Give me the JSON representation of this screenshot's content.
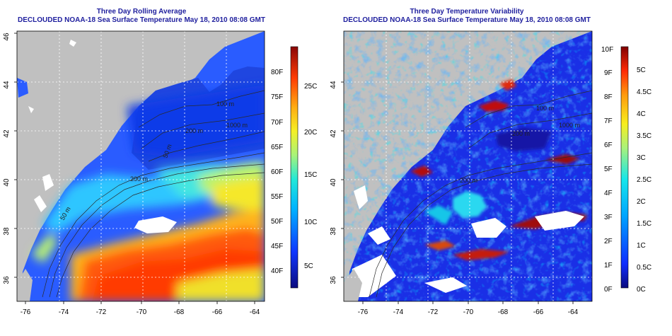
{
  "left_panel": {
    "title": "Three Day Rolling Average",
    "subtitle": "DECLOUDED NOAA-18 Sea Surface Temperature May 18, 2010 08:08 GMT",
    "lat_ticks": [
      "36",
      "38",
      "40",
      "42",
      "44",
      "46"
    ],
    "lon_ticks": [
      "-76",
      "-74",
      "-72",
      "-70",
      "-68",
      "-66",
      "-64"
    ],
    "contour_labels": [
      "100 m",
      "200 m",
      "1000 m",
      "50 m",
      "200 m",
      "50 m"
    ],
    "colorbar_f": [
      "40F",
      "45F",
      "50F",
      "55F",
      "60F",
      "65F",
      "70F",
      "75F",
      "80F"
    ],
    "colorbar_c": [
      "5C",
      "10C",
      "15C",
      "20C",
      "25C"
    ]
  },
  "right_panel": {
    "title": "Three Day Temperature Variability",
    "subtitle": "DECLOUDED NOAA-18 Sea Surface Temperature May 18, 2010 08:08 GMT",
    "lat_ticks": [
      "36",
      "38",
      "40",
      "42",
      "44"
    ],
    "lon_ticks": [
      "-76",
      "-74",
      "-72",
      "-70",
      "-68",
      "-66",
      "-64"
    ],
    "contour_labels": [
      "100 m",
      "200 m",
      "1000 m",
      "200 m"
    ],
    "colorbar_f": [
      "0F",
      "1F",
      "2F",
      "3F",
      "4F",
      "5F",
      "6F",
      "7F",
      "8F",
      "9F",
      "10F"
    ],
    "colorbar_c": [
      "0C",
      "0.5C",
      "1C",
      "1.5C",
      "2C",
      "2.5C",
      "3C",
      "3.5C",
      "4C",
      "4.5C",
      "5C"
    ]
  },
  "colors": {
    "land": "#c0c0c0",
    "title": "#1f1f9e",
    "cloud": "#ffffff"
  }
}
